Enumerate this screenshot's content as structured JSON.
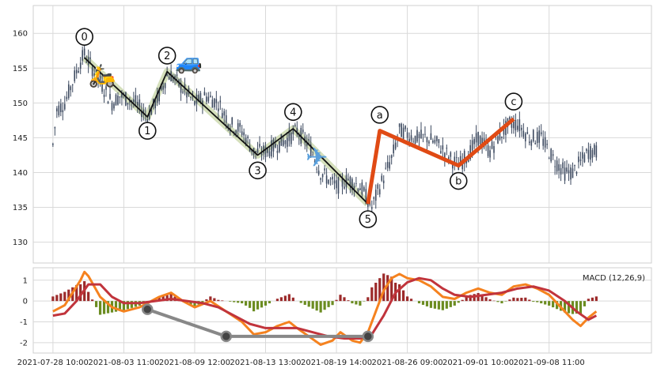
{
  "chart_data": [
    {
      "type": "candlestick",
      "name": "price-panel",
      "ylim": [
        127,
        164
      ],
      "yticks": [
        130,
        135,
        140,
        145,
        150,
        155,
        160
      ],
      "xlim": [
        -5,
        152
      ],
      "xticks": [
        {
          "x": 0,
          "label": "2021-07-28 10:00"
        },
        {
          "x": 18,
          "label": "2021-08-03 11:00"
        },
        {
          "x": 36,
          "label": "2021-08-09 12:00"
        },
        {
          "x": 54,
          "label": "2021-08-13 13:00"
        },
        {
          "x": 72,
          "label": "2021-08-19 14:00"
        },
        {
          "x": 90,
          "label": "2021-08-26 09:00"
        },
        {
          "x": 108,
          "label": "2021-09-01 10:00"
        },
        {
          "x": 126,
          "label": "2021-09-08 11:00"
        }
      ],
      "grid": true,
      "candle_color": "#3d4a60",
      "anchors": [
        [
          0,
          144
        ],
        [
          1,
          149
        ],
        [
          3,
          150
        ],
        [
          5,
          153
        ],
        [
          7,
          156
        ],
        [
          8,
          157
        ],
        [
          10,
          155
        ],
        [
          13,
          152
        ],
        [
          15,
          150
        ],
        [
          17,
          151
        ],
        [
          21,
          150
        ],
        [
          24,
          148
        ],
        [
          27,
          151
        ],
        [
          29,
          154
        ],
        [
          30,
          154
        ],
        [
          33,
          152
        ],
        [
          36,
          150
        ],
        [
          39,
          151
        ],
        [
          42,
          150
        ],
        [
          45,
          147
        ],
        [
          48,
          146
        ],
        [
          51,
          143
        ],
        [
          54,
          143
        ],
        [
          57,
          144
        ],
        [
          60,
          145
        ],
        [
          62,
          146
        ],
        [
          65,
          144
        ],
        [
          68,
          140
        ],
        [
          72,
          138
        ],
        [
          75,
          139
        ],
        [
          78,
          138
        ],
        [
          81,
          135
        ],
        [
          83,
          138
        ],
        [
          86,
          142
        ],
        [
          88,
          146
        ],
        [
          92,
          145
        ],
        [
          95,
          145
        ],
        [
          98,
          144
        ],
        [
          101,
          142
        ],
        [
          103,
          141
        ],
        [
          106,
          143
        ],
        [
          108,
          145
        ],
        [
          111,
          143
        ],
        [
          113,
          145
        ],
        [
          116,
          147
        ],
        [
          118,
          147
        ],
        [
          121,
          145
        ],
        [
          124,
          145
        ],
        [
          127,
          142
        ],
        [
          130,
          140
        ],
        [
          132,
          140
        ],
        [
          136,
          143
        ],
        [
          138,
          143
        ]
      ],
      "wave_labels": [
        {
          "label": "0",
          "x": 8,
          "y": 156.5,
          "text_y": 159.5
        },
        {
          "label": "1",
          "x": 24,
          "y": 148,
          "text_y": 146
        },
        {
          "label": "2",
          "x": 29,
          "y": 154.5,
          "text_y": 156.8
        },
        {
          "label": "3",
          "x": 52,
          "y": 142.5,
          "text_y": 140.3
        },
        {
          "label": "4",
          "x": 61,
          "y": 146.3,
          "text_y": 148.7
        },
        {
          "label": "5",
          "x": 80,
          "y": 135.5,
          "text_y": 133.3
        },
        {
          "label": "a",
          "x": 83,
          "y": 146,
          "text_y": 148.3
        },
        {
          "label": "b",
          "x": 103,
          "y": 141,
          "text_y": 138.8
        },
        {
          "label": "c",
          "x": 117,
          "y": 147.7,
          "text_y": 150.2
        }
      ],
      "impulse_color": "#111111",
      "impulse_band_color": "#cfdcb4",
      "corrective_color": "#e04a14",
      "emojis": [
        {
          "name": "scooter",
          "glyph": "🛵",
          "x": 12.5,
          "y": 154
        },
        {
          "name": "car",
          "glyph": "🚙",
          "x": 34.5,
          "y": 156
        },
        {
          "name": "airplane",
          "glyph": "✈",
          "x": 67,
          "y": 142
        }
      ]
    },
    {
      "type": "line",
      "name": "macd-panel",
      "title": "MACD (12,26,9)",
      "ylim": [
        -2.5,
        1.6
      ],
      "yticks": [
        -2,
        -1,
        0,
        1
      ],
      "series": [
        {
          "color": "#f5821f",
          "points": [
            [
              0,
              -0.5
            ],
            [
              3,
              -0.2
            ],
            [
              5,
              0.4
            ],
            [
              7,
              1.0
            ],
            [
              8,
              1.4
            ],
            [
              9,
              1.2
            ],
            [
              12,
              0.2
            ],
            [
              15,
              -0.3
            ],
            [
              18,
              -0.5
            ],
            [
              22,
              -0.3
            ],
            [
              24,
              -0.1
            ],
            [
              27,
              0.2
            ],
            [
              30,
              0.4
            ],
            [
              33,
              0.0
            ],
            [
              36,
              -0.3
            ],
            [
              40,
              0.0
            ],
            [
              44,
              -0.5
            ],
            [
              48,
              -1.0
            ],
            [
              51,
              -1.6
            ],
            [
              54,
              -1.5
            ],
            [
              57,
              -1.2
            ],
            [
              60,
              -1.0
            ],
            [
              62,
              -1.3
            ],
            [
              65,
              -1.7
            ],
            [
              68,
              -2.1
            ],
            [
              71,
              -1.9
            ],
            [
              73,
              -1.5
            ],
            [
              76,
              -1.9
            ],
            [
              78,
              -2.0
            ],
            [
              80,
              -1.5
            ],
            [
              82,
              -0.5
            ],
            [
              84,
              0.5
            ],
            [
              86,
              1.1
            ],
            [
              88,
              1.3
            ],
            [
              90,
              1.1
            ],
            [
              93,
              1.0
            ],
            [
              96,
              0.7
            ],
            [
              99,
              0.2
            ],
            [
              102,
              0.1
            ],
            [
              105,
              0.4
            ],
            [
              108,
              0.6
            ],
            [
              111,
              0.4
            ],
            [
              114,
              0.3
            ],
            [
              117,
              0.7
            ],
            [
              120,
              0.8
            ],
            [
              123,
              0.6
            ],
            [
              126,
              0.3
            ],
            [
              129,
              -0.3
            ],
            [
              132,
              -0.9
            ],
            [
              134,
              -1.2
            ],
            [
              136,
              -0.8
            ],
            [
              138,
              -0.5
            ]
          ]
        },
        {
          "color": "#c1343c",
          "points": [
            [
              0,
              -0.7
            ],
            [
              3,
              -0.6
            ],
            [
              6,
              0.0
            ],
            [
              9,
              0.8
            ],
            [
              12,
              0.8
            ],
            [
              15,
              0.2
            ],
            [
              18,
              -0.1
            ],
            [
              22,
              -0.1
            ],
            [
              26,
              0.0
            ],
            [
              30,
              0.1
            ],
            [
              34,
              0.0
            ],
            [
              38,
              -0.1
            ],
            [
              42,
              -0.3
            ],
            [
              46,
              -0.7
            ],
            [
              50,
              -1.1
            ],
            [
              54,
              -1.3
            ],
            [
              58,
              -1.3
            ],
            [
              62,
              -1.3
            ],
            [
              66,
              -1.5
            ],
            [
              70,
              -1.7
            ],
            [
              74,
              -1.8
            ],
            [
              78,
              -1.8
            ],
            [
              81,
              -1.6
            ],
            [
              84,
              -0.7
            ],
            [
              87,
              0.4
            ],
            [
              90,
              0.9
            ],
            [
              93,
              1.1
            ],
            [
              96,
              1.0
            ],
            [
              99,
              0.6
            ],
            [
              102,
              0.3
            ],
            [
              106,
              0.2
            ],
            [
              110,
              0.3
            ],
            [
              114,
              0.4
            ],
            [
              118,
              0.6
            ],
            [
              122,
              0.7
            ],
            [
              126,
              0.5
            ],
            [
              130,
              0.0
            ],
            [
              133,
              -0.5
            ],
            [
              136,
              -0.9
            ],
            [
              138,
              -0.7
            ]
          ]
        }
      ],
      "histogram_colors": {
        "positive": "#9c2a2a",
        "negative": "#6b8c21"
      },
      "divergence_line": {
        "color": "#888888",
        "points": [
          [
            24,
            -0.4
          ],
          [
            44,
            -1.7
          ],
          [
            80,
            -1.7
          ]
        ]
      }
    }
  ]
}
